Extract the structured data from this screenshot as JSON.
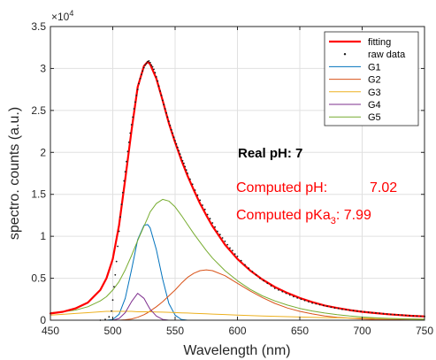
{
  "chart_data": {
    "type": "line",
    "title": "",
    "xlabel": "Wavelength (nm)",
    "ylabel": "spectro. counts (a.u.)",
    "xlim": [
      450,
      750
    ],
    "ylim": [
      0,
      35000
    ],
    "xticks": [
      450,
      500,
      550,
      600,
      650,
      700,
      750
    ],
    "xtick_labels": [
      "450",
      "500",
      "550",
      "600",
      "650",
      "700",
      "750"
    ],
    "yticks": [
      0,
      5000,
      10000,
      15000,
      20000,
      25000,
      30000,
      35000
    ],
    "ytick_labels": [
      "0",
      "0.5",
      "1",
      "1.5",
      "2",
      "2.5",
      "3",
      "3.5"
    ],
    "y_exponent_label": "×10",
    "y_exponent_power": "4",
    "grid": true,
    "legend_placement": "top-right",
    "x": [
      450,
      460,
      470,
      480,
      490,
      495,
      500,
      505,
      510,
      515,
      520,
      525,
      528,
      530,
      535,
      540,
      545,
      550,
      555,
      560,
      565,
      570,
      575,
      580,
      590,
      600,
      610,
      620,
      630,
      640,
      650,
      660,
      670,
      680,
      690,
      700,
      710,
      720,
      730,
      740,
      750
    ],
    "series": [
      {
        "name": "fitting",
        "color": "#ff0000",
        "width": 2.2,
        "values": [
          800,
          1000,
          1400,
          2100,
          3600,
          5000,
          7300,
          11300,
          16800,
          22600,
          27800,
          30300,
          30800,
          30500,
          28800,
          26200,
          23500,
          21200,
          19100,
          17200,
          15500,
          13900,
          12500,
          11200,
          9000,
          7300,
          5950,
          4850,
          3950,
          3250,
          2650,
          2150,
          1750,
          1450,
          1200,
          1000,
          850,
          720,
          610,
          520,
          450
        ]
      },
      {
        "name": "G1",
        "color": "#0072bd",
        "width": 1,
        "values": [
          0,
          0,
          0,
          0,
          0,
          0,
          100,
          700,
          2600,
          6000,
          9600,
          11300,
          11400,
          11000,
          8400,
          4900,
          2000,
          600,
          100,
          0,
          0,
          0,
          0,
          0,
          0,
          0,
          0,
          0,
          0,
          0,
          0,
          0,
          0,
          0,
          0,
          0,
          0,
          0,
          0,
          0,
          0
        ]
      },
      {
        "name": "G2",
        "color": "#d95319",
        "width": 1,
        "values": [
          0,
          0,
          0,
          0,
          0,
          0,
          0,
          0,
          50,
          150,
          350,
          650,
          900,
          1100,
          1600,
          2200,
          2900,
          3600,
          4400,
          5100,
          5600,
          5900,
          6000,
          5900,
          5300,
          4400,
          3500,
          2700,
          2000,
          1450,
          1050,
          750,
          500,
          350,
          250,
          150,
          100,
          80,
          50,
          30,
          20
        ]
      },
      {
        "name": "G3",
        "color": "#edb120",
        "width": 1,
        "values": [
          600,
          700,
          800,
          900,
          1000,
          1050,
          1050,
          1050,
          1050,
          1050,
          1000,
          1000,
          1000,
          1000,
          980,
          960,
          940,
          910,
          880,
          850,
          820,
          790,
          760,
          730,
          670,
          610,
          560,
          510,
          460,
          420,
          380,
          340,
          310,
          280,
          250,
          230,
          210,
          190,
          170,
          160,
          140
        ]
      },
      {
        "name": "G4",
        "color": "#7e2f8e",
        "width": 1,
        "values": [
          0,
          0,
          0,
          0,
          0,
          0,
          0,
          200,
          900,
          2200,
          3200,
          2600,
          1800,
          1300,
          500,
          100,
          0,
          0,
          0,
          0,
          0,
          0,
          0,
          0,
          0,
          0,
          0,
          0,
          0,
          0,
          0,
          0,
          0,
          0,
          0,
          0,
          0,
          0,
          0,
          0,
          0
        ]
      },
      {
        "name": "G5",
        "color": "#77ac30",
        "width": 1,
        "values": [
          900,
          1000,
          1200,
          1600,
          2300,
          2800,
          3600,
          4600,
          6000,
          7700,
          9500,
          11200,
          12200,
          12900,
          13900,
          14400,
          14200,
          13500,
          12500,
          11400,
          10300,
          9300,
          8300,
          7400,
          5900,
          4700,
          3700,
          2900,
          2300,
          1800,
          1400,
          1100,
          850,
          650,
          500,
          380,
          290,
          220,
          170,
          130,
          100
        ]
      }
    ],
    "raw_data": {
      "name": "raw data",
      "color": "#1a1a1a",
      "x": [
        490,
        494,
        497,
        499,
        500,
        501,
        502,
        503,
        504,
        505,
        506,
        507,
        508,
        509,
        510,
        511,
        512,
        513,
        514,
        515,
        516,
        517,
        518,
        519,
        520,
        521,
        522,
        523,
        524,
        525,
        526,
        527,
        528,
        529,
        530,
        531,
        532,
        533,
        534,
        535,
        536,
        537,
        538,
        539,
        540,
        541,
        542,
        543,
        544,
        545,
        546,
        547,
        548,
        549,
        550,
        551,
        552,
        553,
        554,
        555,
        556,
        557,
        558,
        559,
        560,
        562,
        564,
        566,
        568,
        570,
        572,
        574,
        576,
        578,
        580,
        582,
        584,
        586,
        588,
        590,
        592,
        594,
        596,
        598,
        600,
        603,
        606,
        609,
        612,
        615,
        618,
        621,
        624,
        627,
        630,
        633,
        636,
        639,
        642,
        645,
        648,
        651,
        654,
        657,
        660,
        663,
        666,
        669,
        672,
        675,
        678,
        681,
        684,
        687,
        690,
        693,
        696,
        699,
        702,
        705,
        708,
        711,
        714,
        717,
        720,
        723,
        726,
        729,
        732,
        735,
        738,
        741,
        744,
        747,
        750
      ],
      "y": [
        0,
        100,
        400,
        1100,
        2400,
        4000,
        5400,
        7000,
        8800,
        10600,
        12300,
        13800,
        15200,
        16600,
        17700,
        18900,
        20100,
        21200,
        22300,
        23300,
        24200,
        25200,
        26000,
        26800,
        27500,
        28200,
        28800,
        29300,
        29700,
        30100,
        30400,
        30600,
        30800,
        30900,
        30700,
        30400,
        30200,
        29900,
        29500,
        29000,
        28500,
        27900,
        27300,
        26800,
        26200,
        25700,
        25200,
        24700,
        24200,
        23700,
        23200,
        22700,
        22300,
        21800,
        21400,
        21000,
        20600,
        20200,
        19800,
        19400,
        19000,
        18700,
        18300,
        17900,
        17500,
        16800,
        16200,
        15500,
        14900,
        14300,
        13700,
        13200,
        12600,
        12100,
        11600,
        11100,
        10600,
        10200,
        9800,
        9400,
        9000,
        8600,
        8300,
        7900,
        7600,
        7100,
        6600,
        6200,
        5800,
        5400,
        5000,
        4700,
        4400,
        4100,
        3800,
        3600,
        3400,
        3200,
        3000,
        2800,
        2650,
        2500,
        2350,
        2200,
        2050,
        1950,
        1850,
        1750,
        1650,
        1550,
        1450,
        1400,
        1300,
        1250,
        1200,
        1150,
        1100,
        1050,
        1000,
        950,
        900,
        860,
        820,
        780,
        740,
        700,
        670,
        640,
        610,
        580,
        550,
        520,
        500,
        470,
        450
      ]
    },
    "annotations": {
      "real_ph": "Real pH: 7",
      "computed_ph_label": "Computed pH:",
      "computed_ph_value": "7.02",
      "computed_pka_label": "Computed pKa",
      "computed_pka_subscript": "3",
      "computed_pka_value": ": 7.99"
    }
  }
}
